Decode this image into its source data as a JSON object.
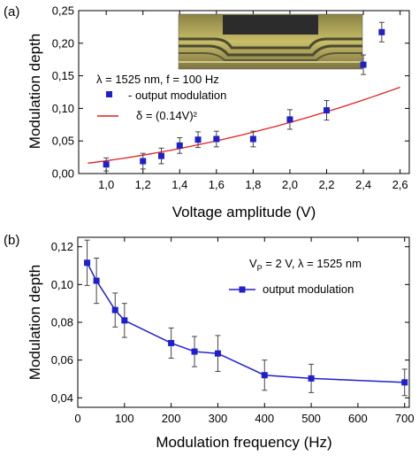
{
  "chart_data": [
    {
      "type": "scatter",
      "panel_label": "(a)",
      "xlabel": "Voltage amplitude (V)",
      "ylabel": "Modulation depth",
      "xlim": [
        0.85,
        2.65
      ],
      "ylim": [
        0.0,
        0.25
      ],
      "x_ticks": [
        1.0,
        1.2,
        1.4,
        1.6,
        1.8,
        2.0,
        2.2,
        2.4,
        2.6
      ],
      "x_tick_labels": [
        "1,0",
        "1,2",
        "1,4",
        "1,6",
        "1,8",
        "2,0",
        "2,2",
        "2,4",
        "2,6"
      ],
      "y_ticks": [
        0.0,
        0.05,
        0.1,
        0.15,
        0.2,
        0.25
      ],
      "y_tick_labels": [
        "0,00",
        "0,05",
        "0,10",
        "0,15",
        "0,20",
        "0,25"
      ],
      "annotation": "λ = 1525 nm, f = 100 Hz",
      "series": [
        {
          "name": "- output modulation",
          "style": "square-markers-with-error-bars",
          "color": "#1f1fcc",
          "x": [
            1.0,
            1.2,
            1.3,
            1.4,
            1.5,
            1.6,
            1.8,
            2.0,
            2.2,
            2.4,
            2.5
          ],
          "y": [
            0.014,
            0.019,
            0.027,
            0.043,
            0.052,
            0.053,
            0.053,
            0.083,
            0.097,
            0.167,
            0.217
          ],
          "err": [
            0.01,
            0.012,
            0.012,
            0.012,
            0.012,
            0.012,
            0.012,
            0.015,
            0.015,
            0.015,
            0.015
          ]
        },
        {
          "name": "δ = (0.14V)²",
          "style": "line",
          "color": "#e02020",
          "fit_coefficient": 0.14,
          "x_range": [
            0.9,
            2.6
          ]
        }
      ],
      "legend_placement": "upper-left",
      "inset": "microscope image of the device"
    },
    {
      "type": "line",
      "panel_label": "(b)",
      "xlabel": "Modulation frequency (Hz)",
      "ylabel": "Modulation depth",
      "xlim": [
        0,
        710
      ],
      "ylim": [
        0.035,
        0.125
      ],
      "x_ticks": [
        0,
        100,
        200,
        300,
        400,
        500,
        600,
        700
      ],
      "x_tick_labels": [
        "0",
        "100",
        "200",
        "300",
        "400",
        "500",
        "600",
        "700"
      ],
      "y_ticks": [
        0.04,
        0.06,
        0.08,
        0.1,
        0.12
      ],
      "y_tick_labels": [
        "0,04",
        "0,06",
        "0,08",
        "0,10",
        "0,12"
      ],
      "annotation_prefix": "V",
      "annotation_subscript": "P",
      "annotation_suffix": " = 2 V, λ = 1525 nm",
      "series": [
        {
          "name": "output modulation",
          "style": "line-with-square-markers",
          "color": "#1f1fcc",
          "x": [
            20,
            40,
            80,
            100,
            200,
            250,
            300,
            400,
            500,
            700
          ],
          "y": [
            0.1115,
            0.102,
            0.0865,
            0.081,
            0.069,
            0.0645,
            0.0635,
            0.052,
            0.0503,
            0.0482
          ],
          "err": [
            0.012,
            0.012,
            0.009,
            0.009,
            0.008,
            0.008,
            0.0095,
            0.008,
            0.0075,
            0.007
          ]
        }
      ],
      "legend_placement": "upper-right"
    }
  ]
}
